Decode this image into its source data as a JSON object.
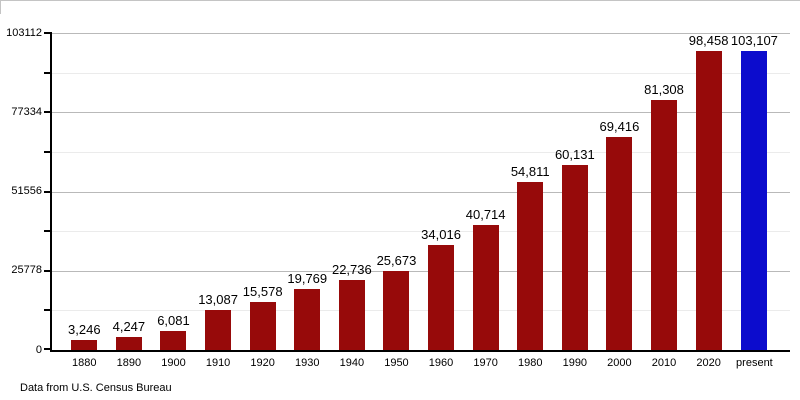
{
  "chart_data": {
    "type": "bar",
    "title": "",
    "xlabel": "",
    "ylabel": "",
    "categories": [
      "1880",
      "1890",
      "1900",
      "1910",
      "1920",
      "1930",
      "1940",
      "1950",
      "1960",
      "1970",
      "1980",
      "1990",
      "2000",
      "2010",
      "2020",
      "present"
    ],
    "values": [
      3246,
      4247,
      6081,
      13087,
      15578,
      19769,
      22736,
      25673,
      34016,
      40714,
      54811,
      60131,
      69416,
      81308,
      98458,
      103107
    ],
    "value_labels": [
      "3,246",
      "4,247",
      "6,081",
      "13,087",
      "15,578",
      "19,769",
      "22,736",
      "25,673",
      "34,016",
      "40,714",
      "54,811",
      "60,131",
      "69,416",
      "81,308",
      "98,458",
      "103,107"
    ],
    "highlight_index": 15,
    "ylim": [
      0,
      103112
    ],
    "yticks": [
      0,
      25778,
      51556,
      77334,
      103112
    ],
    "ytick_labels": [
      "0",
      "25778",
      "51556",
      "77334",
      "103112"
    ],
    "grid_divisions": 8,
    "grid": true,
    "legend": "none",
    "caption": "Data from U.S. Census Bureau",
    "colors": {
      "bar": "#970a0a",
      "highlight": "#0c0ccd",
      "major_grid": "#b9b9b9",
      "minor_grid": "#ebebeb",
      "axis": "#000000",
      "background": "#ffffff"
    }
  }
}
